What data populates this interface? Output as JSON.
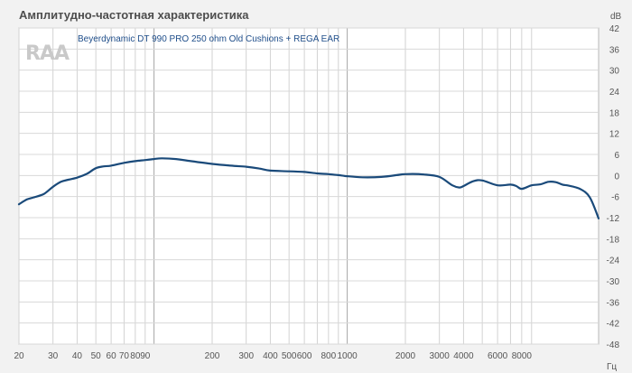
{
  "title": "Амплитудно-частотная характеристика",
  "watermark": "RAA",
  "chart_data": {
    "type": "line",
    "title": "Амплитудно-частотная характеристика",
    "x_unit": "Гц",
    "y_unit": "dB",
    "x_scale": "log",
    "xlim": [
      20,
      20000
    ],
    "ylim": [
      -48,
      42
    ],
    "grid": true,
    "x_ticks": [
      20,
      30,
      40,
      50,
      60,
      70,
      80,
      90,
      200,
      300,
      400,
      500,
      600,
      800,
      1000,
      2000,
      3000,
      4000,
      6000,
      8000
    ],
    "x_tick_labels": [
      "20",
      "30",
      "40",
      "50",
      "60",
      "70",
      "80",
      "90",
      "200",
      "300",
      "400",
      "500",
      "600",
      "800",
      "1000",
      "2000",
      "3000",
      "4000",
      "6000",
      "8000"
    ],
    "y_ticks": [
      42,
      36,
      30,
      24,
      18,
      12,
      6,
      0,
      -6,
      -12,
      -18,
      -24,
      -30,
      -36,
      -42,
      -48
    ],
    "y_tick_labels": [
      "42",
      "36",
      "30",
      "24",
      "18",
      "12",
      "6",
      "0",
      "-6",
      "-12",
      "-18",
      "-24",
      "-30",
      "-36",
      "-42",
      "-48"
    ],
    "series": [
      {
        "name": "Beyerdynamic DT 990 PRO 250 ohm Old Cushions + REGA EAR",
        "color": "#1a4a7a",
        "x": [
          20,
          22,
          24,
          27,
          30,
          33,
          36,
          40,
          45,
          50,
          55,
          60,
          70,
          80,
          90,
          100,
          110,
          130,
          150,
          200,
          250,
          300,
          350,
          400,
          500,
          600,
          700,
          800,
          900,
          1000,
          1200,
          1500,
          1800,
          2000,
          2500,
          3000,
          3500,
          3800,
          4000,
          4500,
          5000,
          6000,
          7000,
          7500,
          8000,
          9000,
          10000,
          11000,
          12000,
          13000,
          14000,
          16000,
          18000,
          20000
        ],
        "y": [
          -8.2,
          -6.8,
          -6.2,
          -5.2,
          -3.2,
          -1.8,
          -1.2,
          -0.6,
          0.5,
          2.1,
          2.6,
          2.8,
          3.6,
          4.1,
          4.4,
          4.7,
          4.9,
          4.7,
          4.2,
          3.3,
          2.8,
          2.5,
          2.0,
          1.4,
          1.2,
          1.0,
          0.6,
          0.4,
          0.1,
          -0.2,
          -0.5,
          -0.4,
          0.1,
          0.4,
          0.3,
          -0.4,
          -2.8,
          -3.4,
          -3.0,
          -1.6,
          -1.4,
          -2.8,
          -2.6,
          -3.0,
          -3.8,
          -2.8,
          -2.5,
          -1.8,
          -1.9,
          -2.6,
          -2.9,
          -3.8,
          -6.2,
          -12.2
        ]
      }
    ]
  }
}
